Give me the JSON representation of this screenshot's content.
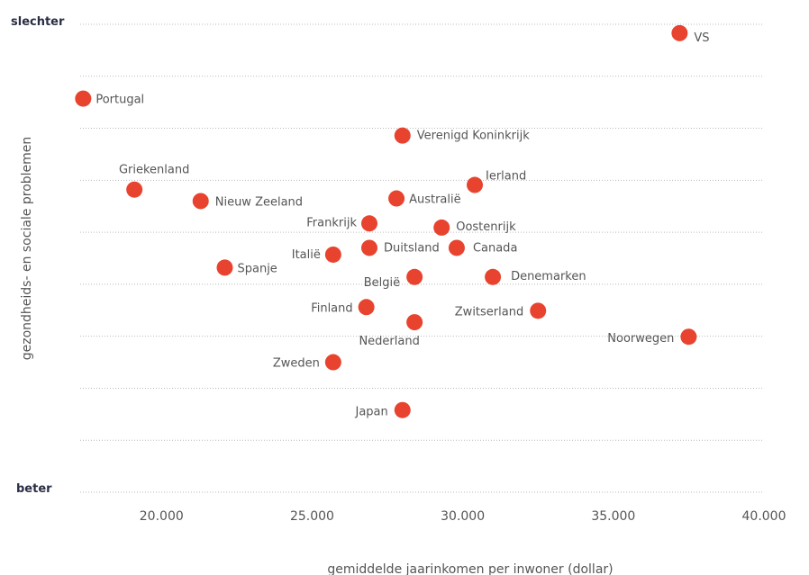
{
  "chart_data": {
    "type": "scatter",
    "xlabel": "gemiddelde jaarinkomen per inwoner (dollar)",
    "ylabel": "gezondheids- en sociale problemen",
    "y_top_label": "slechter",
    "y_bottom_label": "beter",
    "xlim": [
      17300,
      40000
    ],
    "ylim": [
      0,
      9
    ],
    "x_ticks": [
      {
        "value": 20000,
        "label": "20.000"
      },
      {
        "value": 25000,
        "label": "25.000"
      },
      {
        "value": 30000,
        "label": "30.000"
      },
      {
        "value": 35000,
        "label": "35.000"
      },
      {
        "value": 40000,
        "label": "40.000"
      }
    ],
    "grid": true,
    "point_color": "#e8432f",
    "points": [
      {
        "name": "VS",
        "x": 37200,
        "y": 8.83
      },
      {
        "name": "Portugal",
        "x": 17400,
        "y": 7.57
      },
      {
        "name": "Verenigd Koninkrijk",
        "x": 28000,
        "y": 6.86
      },
      {
        "name": "Ierland",
        "x": 30400,
        "y": 5.91
      },
      {
        "name": "Griekenland",
        "x": 19100,
        "y": 5.82
      },
      {
        "name": "Nieuw Zeeland",
        "x": 21300,
        "y": 5.6
      },
      {
        "name": "Australië",
        "x": 27800,
        "y": 5.65
      },
      {
        "name": "Frankrijk",
        "x": 26900,
        "y": 5.17
      },
      {
        "name": "Oostenrijk",
        "x": 29300,
        "y": 5.09
      },
      {
        "name": "Duitsland",
        "x": 26900,
        "y": 4.7
      },
      {
        "name": "Canada",
        "x": 29800,
        "y": 4.7
      },
      {
        "name": "Italië",
        "x": 25700,
        "y": 4.57
      },
      {
        "name": "Spanje",
        "x": 22100,
        "y": 4.32
      },
      {
        "name": "België",
        "x": 28400,
        "y": 4.14
      },
      {
        "name": "Denemarken",
        "x": 31000,
        "y": 4.14
      },
      {
        "name": "Finland",
        "x": 26800,
        "y": 3.56
      },
      {
        "name": "Zwitserland",
        "x": 32500,
        "y": 3.49
      },
      {
        "name": "Nederland",
        "x": 28400,
        "y": 3.27
      },
      {
        "name": "Noorwegen",
        "x": 37500,
        "y": 2.99
      },
      {
        "name": "Zweden",
        "x": 25700,
        "y": 2.5
      },
      {
        "name": "Japan",
        "x": 28000,
        "y": 1.58
      }
    ]
  }
}
